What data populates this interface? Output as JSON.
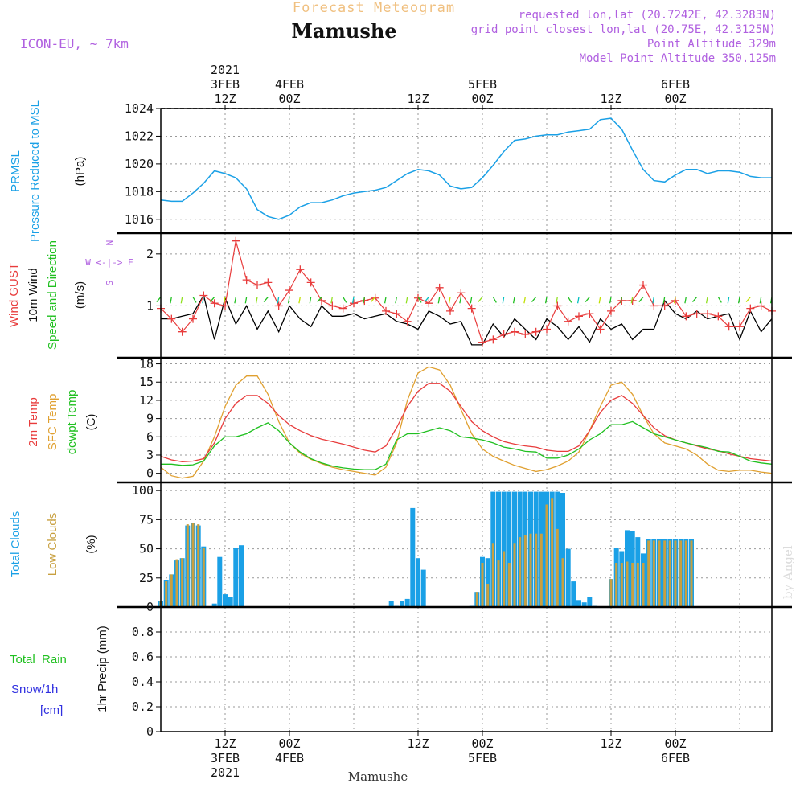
{
  "header": {
    "title": "Forecast Meteogram",
    "location": "Mamushe",
    "model": "ICON-EU, ~ 7km",
    "requested": "requested lon,lat (20.7242E, 42.3283N)",
    "grid_point": "grid point closest lon,lat (20.75E, 42.3125N)",
    "point_altitude": "Point Altitude 329m",
    "model_altitude": "Model Point Altitude 350.125m",
    "bottom_location": "Mamushe",
    "credit": "by Angel"
  },
  "time_axis": {
    "top": [
      {
        "lines": [
          "2021",
          "3FEB",
          "12Z"
        ]
      },
      {
        "lines": [
          "4FEB",
          "00Z"
        ]
      },
      {
        "lines": [
          "12Z"
        ]
      },
      {
        "lines": [
          "5FEB",
          "00Z"
        ]
      },
      {
        "lines": [
          "12Z"
        ]
      },
      {
        "lines": [
          "6FEB",
          "00Z"
        ]
      }
    ],
    "bottom": [
      {
        "lines": [
          "12Z",
          "3FEB",
          "2021"
        ]
      },
      {
        "lines": [
          "00Z",
          "4FEB"
        ]
      },
      {
        "lines": [
          "12Z"
        ]
      },
      {
        "lines": [
          "00Z",
          "5FEB"
        ]
      },
      {
        "lines": [
          "12Z"
        ]
      },
      {
        "lines": [
          "00Z",
          "6FEB"
        ]
      }
    ]
  },
  "labels": {
    "pressure": [
      "PRMSL",
      "Pressure Reduced to MSL",
      "(hPa)"
    ],
    "wind": [
      "Wind GUST",
      "10m Wind",
      "(m/s)",
      "Speed and Direction"
    ],
    "compass": [
      "N",
      "W <-|-> E",
      "S"
    ],
    "temp": [
      "2m Temp",
      "SFC Temp",
      "dewpt Temp",
      "(C)"
    ],
    "clouds": [
      "Total Clouds",
      "Low Clouds",
      "(%)"
    ],
    "precip": [
      "Total  Rain",
      "Snow/1h",
      "[cm]",
      "1hr Precip (mm)"
    ]
  },
  "colors": {
    "pressure": "#1aa0e6",
    "gust": "#e83c3c",
    "wind": "#000000",
    "t2m": "#e83c3c",
    "sfc": "#e0a030",
    "dew": "#20c020",
    "total_cloud": "#1aa0e6",
    "low_cloud": "#c8a040",
    "title": "#f0c080",
    "info": "#b060e0",
    "rain": "#20c020",
    "snow": "#3030e0"
  },
  "chart_data": [
    {
      "type": "line",
      "name": "PRMSL",
      "unit": "hPa",
      "x_start": "2021-02-03T00:00Z",
      "x_step_hours": 2,
      "ylim": [
        1015,
        1024
      ],
      "yticks": [
        "1016",
        "1018",
        "1020",
        "1022",
        "1024"
      ],
      "values": [
        1017.4,
        1017.3,
        1017.3,
        1017.9,
        1018.6,
        1019.5,
        1019.3,
        1019.0,
        1018.2,
        1016.7,
        1016.2,
        1016.0,
        1016.3,
        1016.9,
        1017.2,
        1017.2,
        1017.4,
        1017.7,
        1017.9,
        1018.0,
        1018.1,
        1018.3,
        1018.8,
        1019.3,
        1019.6,
        1019.5,
        1019.2,
        1018.4,
        1018.2,
        1018.3,
        1019.0,
        1019.9,
        1020.9,
        1021.7,
        1021.8,
        1022.0,
        1022.1,
        1022.1,
        1022.3,
        1022.4,
        1022.5,
        1023.2,
        1023.3,
        1022.5,
        1021.0,
        1019.6,
        1018.8,
        1018.7,
        1019.2,
        1019.6,
        1019.6,
        1019.3,
        1019.5,
        1019.5,
        1019.4,
        1019.1,
        1019.0,
        1019.0
      ]
    },
    {
      "type": "line",
      "name": "Wind GUST / 10m Wind",
      "unit": "m/s",
      "x_start": "2021-02-03T00:00Z",
      "x_step_hours": 2,
      "ylim": [
        0,
        2.4
      ],
      "yticks": [
        "1",
        "2"
      ],
      "series": [
        {
          "name": "Wind GUST",
          "values": [
            0.95,
            0.75,
            0.5,
            0.75,
            1.2,
            1.05,
            1.0,
            2.25,
            1.5,
            1.4,
            1.45,
            1.0,
            1.3,
            1.7,
            1.45,
            1.1,
            1.0,
            0.95,
            1.05,
            1.1,
            1.15,
            0.9,
            0.85,
            0.7,
            1.15,
            1.05,
            1.35,
            0.9,
            1.25,
            0.95,
            0.3,
            0.35,
            0.45,
            0.5,
            0.45,
            0.5,
            0.55,
            1.0,
            0.7,
            0.8,
            0.85,
            0.55,
            0.9,
            1.1,
            1.1,
            1.4,
            1.0,
            1.0,
            1.1,
            0.8,
            0.85,
            0.85,
            0.8,
            0.6,
            0.6,
            0.95,
            1.0,
            0.9
          ]
        },
        {
          "name": "10m Wind",
          "values": [
            0.75,
            0.75,
            0.8,
            0.85,
            1.2,
            0.35,
            1.15,
            0.65,
            1.0,
            0.55,
            0.9,
            0.5,
            1.0,
            0.75,
            0.6,
            1.0,
            0.8,
            0.8,
            0.85,
            0.75,
            0.8,
            0.85,
            0.7,
            0.65,
            0.55,
            0.9,
            0.8,
            0.65,
            0.7,
            0.25,
            0.25,
            0.65,
            0.4,
            0.75,
            0.55,
            0.35,
            0.75,
            0.6,
            0.35,
            0.6,
            0.3,
            0.75,
            0.55,
            0.65,
            0.35,
            0.55,
            0.55,
            1.1,
            0.85,
            0.75,
            0.9,
            0.75,
            0.8,
            0.85,
            0.35,
            0.9,
            0.5,
            0.75
          ]
        }
      ]
    },
    {
      "type": "line",
      "name": "Temperature",
      "unit": "C",
      "x_start": "2021-02-03T00:00Z",
      "x_step_hours": 2,
      "ylim": [
        -1.5,
        19
      ],
      "yticks": [
        "0",
        "3",
        "6",
        "9",
        "12",
        "15",
        "18"
      ],
      "series": [
        {
          "name": "2m Temp",
          "values": [
            2.8,
            2.2,
            1.9,
            2.0,
            2.4,
            5.0,
            9.0,
            11.5,
            12.8,
            12.8,
            11.5,
            9.5,
            8.0,
            7.0,
            6.2,
            5.6,
            5.2,
            4.8,
            4.3,
            3.8,
            3.5,
            4.5,
            7.5,
            11.0,
            13.5,
            14.8,
            14.8,
            13.5,
            11.0,
            8.5,
            7.0,
            6.0,
            5.2,
            4.8,
            4.5,
            4.3,
            3.8,
            3.6,
            3.6,
            4.5,
            7.0,
            10.0,
            12.0,
            12.8,
            11.5,
            9.5,
            7.5,
            6.2,
            5.5,
            5.0,
            4.5,
            4.0,
            3.7,
            3.2,
            2.8,
            2.4,
            2.2,
            2.0
          ]
        },
        {
          "name": "SFC Temp",
          "values": [
            1.0,
            -0.4,
            -0.8,
            -0.5,
            2.0,
            6.0,
            11.0,
            14.5,
            16.0,
            16.0,
            13.0,
            8.5,
            5.0,
            3.3,
            2.3,
            1.6,
            1.0,
            0.6,
            0.3,
            0.0,
            -0.3,
            1.0,
            5.0,
            12.0,
            16.5,
            17.5,
            17.0,
            14.5,
            10.5,
            6.5,
            4.0,
            2.8,
            2.0,
            1.3,
            0.8,
            0.3,
            0.6,
            1.2,
            2.0,
            3.5,
            7.0,
            11.0,
            14.5,
            15.0,
            13.0,
            9.5,
            6.5,
            5.0,
            4.5,
            4.0,
            3.0,
            1.5,
            0.5,
            0.3,
            0.5,
            0.5,
            0.2,
            0.0
          ]
        },
        {
          "name": "dewpt Temp",
          "values": [
            1.5,
            1.5,
            1.3,
            1.4,
            2.0,
            4.5,
            6.0,
            6.0,
            6.5,
            7.5,
            8.3,
            7.0,
            5.0,
            3.5,
            2.4,
            1.7,
            1.2,
            0.9,
            0.7,
            0.6,
            0.6,
            1.5,
            5.5,
            6.5,
            6.5,
            7.0,
            7.5,
            7.0,
            6.0,
            5.8,
            5.5,
            5.0,
            4.3,
            4.0,
            3.6,
            3.5,
            2.5,
            2.5,
            3.0,
            4.0,
            5.5,
            6.5,
            8.0,
            8.0,
            8.5,
            7.5,
            6.5,
            6.0,
            5.5,
            5.0,
            4.6,
            4.2,
            3.6,
            3.5,
            2.8,
            2.0,
            1.7,
            1.5
          ]
        }
      ]
    },
    {
      "type": "bar",
      "name": "Clouds",
      "unit": "%",
      "x_start": "2021-02-03T00:00Z",
      "x_step_hours": 1,
      "ylim": [
        0,
        107
      ],
      "yticks": [
        "0",
        "25",
        "50",
        "75",
        "100"
      ],
      "series": [
        {
          "name": "Total Clouds",
          "values": [
            5,
            23,
            28,
            40,
            42,
            70,
            72,
            70,
            52,
            0,
            3,
            43,
            11,
            9,
            51,
            53,
            0,
            0,
            0,
            0,
            0,
            0,
            0,
            0,
            0,
            0,
            0,
            0,
            0,
            0,
            0,
            0,
            0,
            0,
            0,
            0,
            0,
            0,
            0,
            0,
            0,
            0,
            0,
            5,
            1,
            5,
            7,
            85,
            42,
            32,
            0,
            0,
            0,
            0,
            0,
            0,
            0,
            0,
            1,
            13,
            43,
            42,
            99,
            99,
            99,
            99,
            99,
            99,
            99,
            99,
            99,
            99,
            99,
            99,
            99,
            98,
            50,
            22,
            6,
            4,
            9,
            1,
            0,
            0,
            24,
            51,
            48,
            66,
            65,
            60,
            46,
            58,
            58,
            58,
            58,
            58,
            58,
            58,
            58,
            58
          ]
        },
        {
          "name": "Low Clouds",
          "values": [
            5,
            22,
            28,
            41,
            42,
            71,
            72,
            71,
            51,
            0,
            0,
            0,
            0,
            0,
            0,
            0,
            0,
            0,
            0,
            0,
            0,
            0,
            0,
            0,
            0,
            0,
            0,
            0,
            0,
            0,
            0,
            0,
            0,
            0,
            0,
            0,
            0,
            0,
            0,
            0,
            0,
            0,
            0,
            0,
            0,
            0,
            0,
            0,
            0,
            0,
            0,
            0,
            0,
            0,
            0,
            0,
            0,
            0,
            0,
            13,
            38,
            20,
            55,
            40,
            48,
            38,
            55,
            60,
            62,
            63,
            63,
            63,
            88,
            93,
            67,
            42,
            0,
            0,
            0,
            0,
            0,
            0,
            0,
            0,
            24,
            38,
            38,
            39,
            38,
            38,
            38,
            57,
            57,
            57,
            57,
            57,
            57,
            57,
            57,
            57
          ]
        }
      ]
    },
    {
      "type": "bar",
      "name": "1hr Precip",
      "unit": "mm",
      "ylim": [
        0,
        1.0
      ],
      "yticks": [
        "0",
        "0.2",
        "0.4",
        "0.6",
        "0.8"
      ],
      "values": []
    }
  ]
}
